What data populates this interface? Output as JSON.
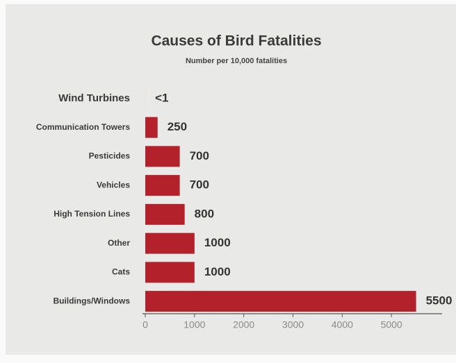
{
  "chart_data": {
    "type": "hbar",
    "title": "Causes of Bird Fatalities",
    "subtitle": "Number per 10,000 fatalities",
    "categories": [
      "Wind Turbines",
      "Communication Towers",
      "Pesticides",
      "Vehicles",
      "High Tension Lines",
      "Other",
      "Cats",
      "Buildings/Windows"
    ],
    "values": [
      0.5,
      250,
      700,
      700,
      800,
      1000,
      1000,
      5500
    ],
    "value_labels": [
      "<1",
      "250",
      "700",
      "700",
      "800",
      "1000",
      "1000",
      "5500"
    ],
    "color": "#b3222b",
    "xlim": [
      0,
      6000
    ],
    "xticks": [
      0,
      1000,
      2000,
      3000,
      4000,
      5000
    ]
  }
}
